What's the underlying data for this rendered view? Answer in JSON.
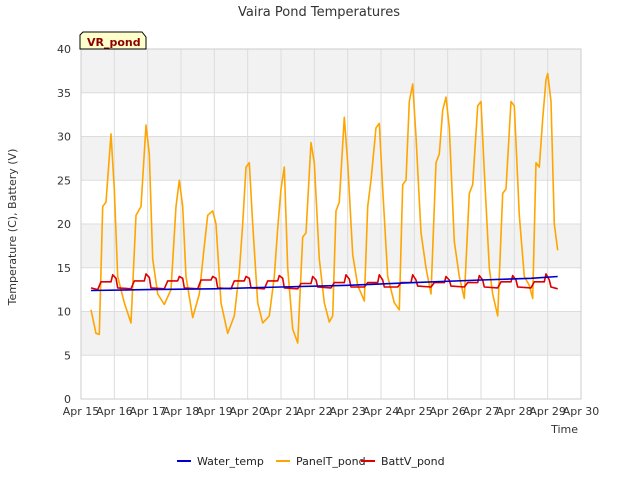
{
  "chart_data": {
    "type": "line",
    "title": "Vaira Pond Temperatures",
    "xlabel": "Time",
    "ylabel": "Temperature (C), Battery (V)",
    "badge": "VR_pond",
    "ylim": [
      0,
      40
    ],
    "yticks": [
      0,
      5,
      10,
      15,
      20,
      25,
      30,
      35,
      40
    ],
    "xlim": [
      0,
      15
    ],
    "xticks": [
      {
        "label": "Apr 15",
        "day": 0
      },
      {
        "label": "Apr 16",
        "day": 1
      },
      {
        "label": "Apr 17",
        "day": 2
      },
      {
        "label": "Apr 18",
        "day": 3
      },
      {
        "label": "Apr 19",
        "day": 4
      },
      {
        "label": "Apr 20",
        "day": 5
      },
      {
        "label": "Apr 21",
        "day": 6
      },
      {
        "label": "Apr 22",
        "day": 7
      },
      {
        "label": "Apr 23",
        "day": 8
      },
      {
        "label": "Apr 24",
        "day": 9
      },
      {
        "label": "Apr 25",
        "day": 10
      },
      {
        "label": "Apr 26",
        "day": 11
      },
      {
        "label": "Apr 27",
        "day": 12
      },
      {
        "label": "Apr 28",
        "day": 13
      },
      {
        "label": "Apr 29",
        "day": 14
      },
      {
        "label": "Apr 30",
        "day": 15
      }
    ],
    "grid": true,
    "legend_position": "bottom",
    "series": [
      {
        "name": "Water_temp",
        "color": "#0000cc",
        "points": [
          [
            0.3,
            12.4
          ],
          [
            2.0,
            12.5
          ],
          [
            4.0,
            12.6
          ],
          [
            6.0,
            12.8
          ],
          [
            8.0,
            13.0
          ],
          [
            10.0,
            13.3
          ],
          [
            12.0,
            13.6
          ],
          [
            13.5,
            13.8
          ],
          [
            14.3,
            14.0
          ]
        ]
      },
      {
        "name": "PanelT_pond",
        "color": "#ffa500",
        "points": [
          [
            0.3,
            10.2
          ],
          [
            0.45,
            7.5
          ],
          [
            0.55,
            7.4
          ],
          [
            0.65,
            22.0
          ],
          [
            0.75,
            22.5
          ],
          [
            0.9,
            30.3
          ],
          [
            1.0,
            24.0
          ],
          [
            1.1,
            14.0
          ],
          [
            1.3,
            11.0
          ],
          [
            1.5,
            8.7
          ],
          [
            1.65,
            21.0
          ],
          [
            1.8,
            22.0
          ],
          [
            1.95,
            31.3
          ],
          [
            2.05,
            28.0
          ],
          [
            2.15,
            16.0
          ],
          [
            2.3,
            12.0
          ],
          [
            2.5,
            10.8
          ],
          [
            2.7,
            12.5
          ],
          [
            2.85,
            22.0
          ],
          [
            2.95,
            25.0
          ],
          [
            3.05,
            22.0
          ],
          [
            3.15,
            14.0
          ],
          [
            3.35,
            9.3
          ],
          [
            3.55,
            12.0
          ],
          [
            3.7,
            17.5
          ],
          [
            3.8,
            21.0
          ],
          [
            3.95,
            21.5
          ],
          [
            4.05,
            20.0
          ],
          [
            4.2,
            11.0
          ],
          [
            4.4,
            7.5
          ],
          [
            4.6,
            9.5
          ],
          [
            4.75,
            14.5
          ],
          [
            4.85,
            20.0
          ],
          [
            4.95,
            26.5
          ],
          [
            5.05,
            27.0
          ],
          [
            5.15,
            20.0
          ],
          [
            5.3,
            11.0
          ],
          [
            5.45,
            8.7
          ],
          [
            5.65,
            9.5
          ],
          [
            5.8,
            14.0
          ],
          [
            5.9,
            19.5
          ],
          [
            6.0,
            24.0
          ],
          [
            6.1,
            26.5
          ],
          [
            6.2,
            15.0
          ],
          [
            6.35,
            8.0
          ],
          [
            6.5,
            6.4
          ],
          [
            6.65,
            18.5
          ],
          [
            6.75,
            19.0
          ],
          [
            6.9,
            29.3
          ],
          [
            7.0,
            27.0
          ],
          [
            7.15,
            16.0
          ],
          [
            7.3,
            11.0
          ],
          [
            7.45,
            8.8
          ],
          [
            7.55,
            9.5
          ],
          [
            7.65,
            21.5
          ],
          [
            7.75,
            22.5
          ],
          [
            7.9,
            32.2
          ],
          [
            8.0,
            27.0
          ],
          [
            8.15,
            16.5
          ],
          [
            8.3,
            13.0
          ],
          [
            8.5,
            11.2
          ],
          [
            8.6,
            22.0
          ],
          [
            8.7,
            25.0
          ],
          [
            8.85,
            31.0
          ],
          [
            8.95,
            31.5
          ],
          [
            9.05,
            24.0
          ],
          [
            9.2,
            14.0
          ],
          [
            9.4,
            11.0
          ],
          [
            9.55,
            10.2
          ],
          [
            9.65,
            24.5
          ],
          [
            9.75,
            25.0
          ],
          [
            9.85,
            34.0
          ],
          [
            9.95,
            36.0
          ],
          [
            10.05,
            30.0
          ],
          [
            10.2,
            19.0
          ],
          [
            10.35,
            15.0
          ],
          [
            10.5,
            12.0
          ],
          [
            10.65,
            27.0
          ],
          [
            10.75,
            28.0
          ],
          [
            10.85,
            33.0
          ],
          [
            10.95,
            34.5
          ],
          [
            11.05,
            31.0
          ],
          [
            11.2,
            18.0
          ],
          [
            11.35,
            14.0
          ],
          [
            11.5,
            11.5
          ],
          [
            11.65,
            23.5
          ],
          [
            11.75,
            24.5
          ],
          [
            11.9,
            33.5
          ],
          [
            12.0,
            34.0
          ],
          [
            12.1,
            26.0
          ],
          [
            12.25,
            15.0
          ],
          [
            12.35,
            12.0
          ],
          [
            12.5,
            9.5
          ],
          [
            12.65,
            23.5
          ],
          [
            12.75,
            24.0
          ],
          [
            12.9,
            34.0
          ],
          [
            13.0,
            33.5
          ],
          [
            13.15,
            21.0
          ],
          [
            13.3,
            14.0
          ],
          [
            13.45,
            13.0
          ],
          [
            13.55,
            11.5
          ],
          [
            13.65,
            27.0
          ],
          [
            13.75,
            26.5
          ],
          [
            13.85,
            32.0
          ],
          [
            13.95,
            36.5
          ],
          [
            14.0,
            37.2
          ],
          [
            14.1,
            34.0
          ],
          [
            14.2,
            20.0
          ],
          [
            14.3,
            17.0
          ]
        ]
      },
      {
        "name": "BattV_pond",
        "color": "#dd0000",
        "points": [
          [
            0.3,
            12.7
          ],
          [
            0.5,
            12.5
          ],
          [
            0.6,
            13.4
          ],
          [
            0.9,
            13.4
          ],
          [
            0.95,
            14.2
          ],
          [
            1.05,
            13.8
          ],
          [
            1.1,
            12.7
          ],
          [
            1.5,
            12.6
          ],
          [
            1.6,
            13.5
          ],
          [
            1.9,
            13.5
          ],
          [
            1.95,
            14.3
          ],
          [
            2.05,
            13.9
          ],
          [
            2.1,
            12.7
          ],
          [
            2.5,
            12.6
          ],
          [
            2.6,
            13.5
          ],
          [
            2.9,
            13.5
          ],
          [
            2.95,
            14.0
          ],
          [
            3.05,
            13.8
          ],
          [
            3.1,
            12.7
          ],
          [
            3.5,
            12.6
          ],
          [
            3.6,
            13.6
          ],
          [
            3.9,
            13.6
          ],
          [
            3.95,
            14.0
          ],
          [
            4.05,
            13.8
          ],
          [
            4.1,
            12.7
          ],
          [
            4.5,
            12.6
          ],
          [
            4.6,
            13.5
          ],
          [
            4.9,
            13.5
          ],
          [
            4.95,
            14.0
          ],
          [
            5.05,
            13.8
          ],
          [
            5.1,
            12.7
          ],
          [
            5.5,
            12.6
          ],
          [
            5.6,
            13.5
          ],
          [
            5.9,
            13.5
          ],
          [
            5.95,
            14.1
          ],
          [
            6.05,
            13.8
          ],
          [
            6.1,
            12.7
          ],
          [
            6.5,
            12.6
          ],
          [
            6.6,
            13.2
          ],
          [
            6.9,
            13.2
          ],
          [
            6.95,
            14.0
          ],
          [
            7.05,
            13.6
          ],
          [
            7.1,
            12.8
          ],
          [
            7.5,
            12.7
          ],
          [
            7.6,
            13.3
          ],
          [
            7.9,
            13.3
          ],
          [
            7.95,
            14.2
          ],
          [
            8.05,
            13.7
          ],
          [
            8.1,
            12.8
          ],
          [
            8.5,
            12.8
          ],
          [
            8.6,
            13.3
          ],
          [
            8.9,
            13.3
          ],
          [
            8.95,
            14.2
          ],
          [
            9.05,
            13.6
          ],
          [
            9.1,
            12.8
          ],
          [
            9.5,
            12.8
          ],
          [
            9.6,
            13.3
          ],
          [
            9.9,
            13.3
          ],
          [
            9.95,
            14.2
          ],
          [
            10.05,
            13.6
          ],
          [
            10.1,
            12.9
          ],
          [
            10.5,
            12.8
          ],
          [
            10.6,
            13.3
          ],
          [
            10.9,
            13.3
          ],
          [
            10.95,
            14.0
          ],
          [
            11.05,
            13.6
          ],
          [
            11.1,
            12.9
          ],
          [
            11.5,
            12.8
          ],
          [
            11.6,
            13.3
          ],
          [
            11.9,
            13.3
          ],
          [
            11.95,
            14.1
          ],
          [
            12.05,
            13.6
          ],
          [
            12.1,
            12.8
          ],
          [
            12.5,
            12.7
          ],
          [
            12.6,
            13.4
          ],
          [
            12.9,
            13.4
          ],
          [
            12.95,
            14.1
          ],
          [
            13.05,
            13.6
          ],
          [
            13.1,
            12.8
          ],
          [
            13.5,
            12.7
          ],
          [
            13.6,
            13.4
          ],
          [
            13.9,
            13.4
          ],
          [
            13.95,
            14.3
          ],
          [
            14.05,
            13.6
          ],
          [
            14.1,
            12.8
          ],
          [
            14.3,
            12.6
          ]
        ]
      }
    ]
  }
}
